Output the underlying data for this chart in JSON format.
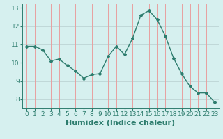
{
  "x": [
    0,
    1,
    2,
    3,
    4,
    5,
    6,
    7,
    8,
    9,
    10,
    11,
    12,
    13,
    14,
    15,
    16,
    17,
    18,
    19,
    20,
    21,
    22,
    23
  ],
  "y": [
    10.9,
    10.9,
    10.7,
    10.1,
    10.2,
    9.85,
    9.55,
    9.15,
    9.35,
    9.4,
    10.35,
    10.9,
    10.45,
    11.35,
    12.6,
    12.85,
    12.35,
    11.45,
    10.25,
    9.4,
    8.7,
    8.35,
    8.35,
    7.85
  ],
  "xlabel": "Humidex (Indice chaleur)",
  "ylim": [
    7.5,
    13.2
  ],
  "xlim": [
    -0.5,
    23.5
  ],
  "yticks": [
    8,
    9,
    10,
    11,
    12,
    13
  ],
  "xticks": [
    0,
    1,
    2,
    3,
    4,
    5,
    6,
    7,
    8,
    9,
    10,
    11,
    12,
    13,
    14,
    15,
    16,
    17,
    18,
    19,
    20,
    21,
    22,
    23
  ],
  "line_color": "#2e7d6e",
  "bg_color": "#d6f0ef",
  "grid_color_v": "#e8a0a0",
  "grid_color_h": "#c0d8d8",
  "marker": "D",
  "marker_size": 2.0,
  "line_width": 1.0,
  "xlabel_fontsize": 8,
  "tick_fontsize": 6.5
}
